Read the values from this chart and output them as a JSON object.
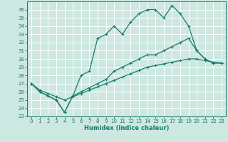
{
  "xlabel": "Humidex (Indice chaleur)",
  "background_color": "#cce8e0",
  "grid_color": "#ffffff",
  "line_color": "#1a7a6e",
  "xlim": [
    -0.5,
    23.5
  ],
  "ylim": [
    23,
    37
  ],
  "xticks": [
    0,
    1,
    2,
    3,
    4,
    5,
    6,
    7,
    8,
    9,
    10,
    11,
    12,
    13,
    14,
    15,
    16,
    17,
    18,
    19,
    20,
    21,
    22,
    23
  ],
  "yticks": [
    23,
    24,
    25,
    26,
    27,
    28,
    29,
    30,
    31,
    32,
    33,
    34,
    35,
    36
  ],
  "line1_x": [
    0,
    1,
    2,
    3,
    4,
    5,
    6,
    7,
    8,
    9,
    10,
    11,
    12,
    13,
    14,
    15,
    16,
    17,
    18,
    19,
    20,
    21,
    22,
    23
  ],
  "line1_y": [
    27,
    26,
    25.5,
    25,
    23.5,
    25.5,
    28,
    28.5,
    32.5,
    33,
    34,
    33,
    34.5,
    35.5,
    36,
    36,
    35,
    36.5,
    35.5,
    34,
    31,
    30,
    29.5,
    29.5
  ],
  "line2_x": [
    0,
    1,
    2,
    3,
    4,
    5,
    6,
    7,
    8,
    9,
    10,
    11,
    12,
    13,
    14,
    15,
    16,
    17,
    18,
    19,
    20,
    21,
    22,
    23
  ],
  "line2_y": [
    27,
    26,
    25.5,
    25,
    23.5,
    25.5,
    26,
    26.5,
    27,
    27.5,
    28.5,
    29,
    29.5,
    30,
    30.5,
    30.5,
    31,
    31.5,
    32,
    32.5,
    31,
    30,
    29.5,
    29.5
  ],
  "line3_x": [
    0,
    1,
    2,
    3,
    4,
    5,
    6,
    7,
    8,
    9,
    10,
    11,
    12,
    13,
    14,
    15,
    16,
    17,
    18,
    19,
    20,
    21,
    22,
    23
  ],
  "line3_y": [
    27,
    26.2,
    25.8,
    25.4,
    25.0,
    25.4,
    25.8,
    26.2,
    26.6,
    27.0,
    27.4,
    27.8,
    28.2,
    28.6,
    29.0,
    29.2,
    29.4,
    29.6,
    29.8,
    30.0,
    30.0,
    29.8,
    29.6,
    29.5
  ]
}
